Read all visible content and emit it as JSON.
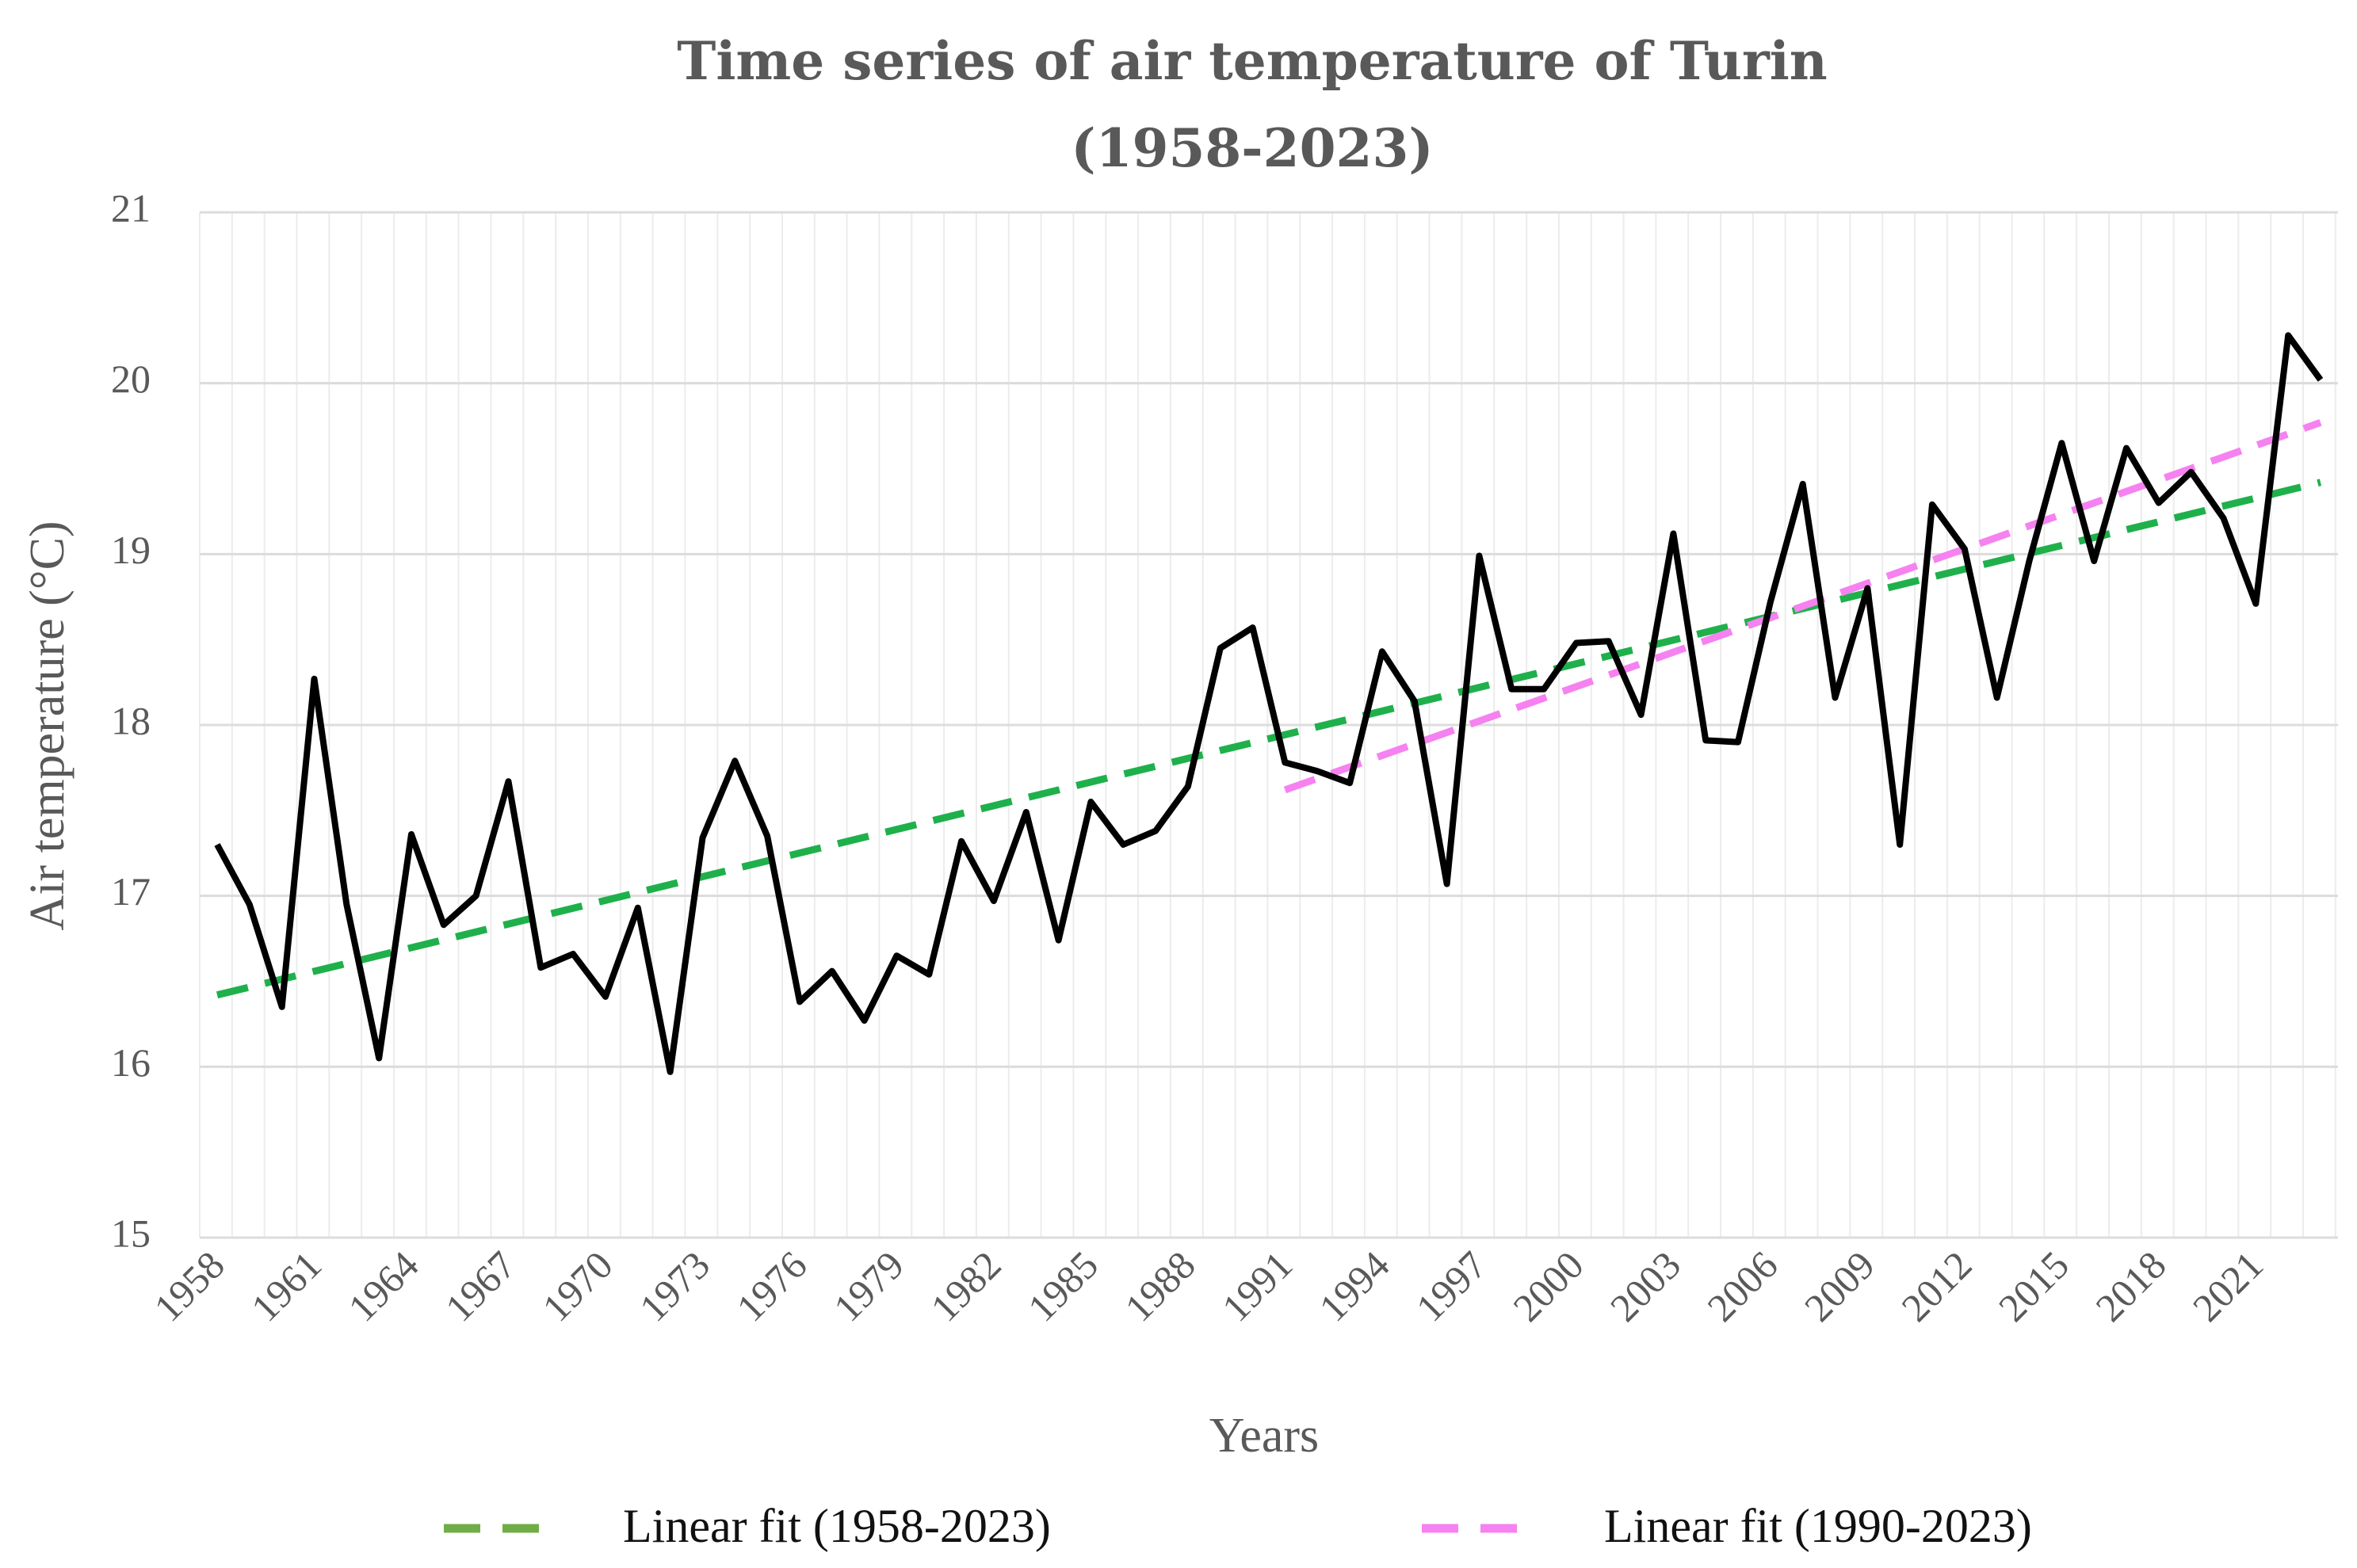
{
  "chart_data": {
    "type": "line",
    "title": "Time series of air temperature of Turin",
    "subtitle": "(1958-2023)",
    "xlabel": "Years",
    "ylabel": "Air temperature (°C)",
    "ylim": [
      15,
      21
    ],
    "yticks": [
      15,
      16,
      17,
      18,
      19,
      20,
      21
    ],
    "xticks": [
      1958,
      1961,
      1964,
      1967,
      1970,
      1973,
      1976,
      1979,
      1982,
      1985,
      1988,
      1991,
      1994,
      1997,
      2000,
      2003,
      2006,
      2009,
      2012,
      2015,
      2018,
      2021
    ],
    "xlim": [
      1958,
      2023
    ],
    "grid": true,
    "legend_position": "bottom",
    "series": [
      {
        "color": "#000000",
        "x": [
          1958,
          1959,
          1960,
          1961,
          1962,
          1963,
          1964,
          1965,
          1966,
          1967,
          1968,
          1969,
          1970,
          1971,
          1972,
          1973,
          1974,
          1975,
          1976,
          1977,
          1978,
          1979,
          1980,
          1981,
          1982,
          1983,
          1984,
          1985,
          1986,
          1987,
          1988,
          1989,
          1990,
          1991,
          1992,
          1993,
          1994,
          1995,
          1996,
          1997,
          1998,
          1999,
          2000,
          2001,
          2002,
          2003,
          2004,
          2005,
          2006,
          2007,
          2008,
          2009,
          2010,
          2011,
          2012,
          2013,
          2014,
          2015,
          2016,
          2017,
          2018,
          2019,
          2020,
          2021,
          2022,
          2023
        ],
        "values": [
          17.3,
          16.95,
          16.35,
          18.27,
          16.95,
          16.05,
          17.36,
          16.83,
          17.0,
          17.67,
          16.58,
          16.66,
          16.41,
          16.93,
          15.97,
          17.34,
          17.79,
          17.35,
          16.38,
          16.56,
          16.27,
          16.65,
          16.54,
          17.32,
          16.97,
          17.49,
          16.74,
          17.55,
          17.3,
          17.38,
          17.64,
          18.45,
          18.57,
          17.78,
          17.73,
          17.66,
          18.43,
          18.14,
          17.07,
          18.99,
          18.21,
          18.21,
          18.48,
          18.49,
          18.06,
          19.12,
          17.91,
          17.9,
          18.72,
          19.41,
          18.16,
          18.8,
          17.3,
          19.29,
          19.03,
          18.16,
          18.96,
          19.65,
          18.96,
          19.62,
          19.3,
          19.48,
          19.21,
          18.71,
          20.28,
          20.02
        ]
      },
      {
        "name": "Linear fit (1958-2023)",
        "color": "#1fb04c",
        "legend_color": "#70ad47",
        "dash": true,
        "x": [
          1958,
          2023
        ],
        "values": [
          16.42,
          19.42
        ]
      },
      {
        "name": "Linear fit (1990-2023)",
        "color": "#f582f0",
        "legend_color": "#f582f0",
        "dash": true,
        "x": [
          1991,
          2023
        ],
        "values": [
          17.62,
          19.77
        ]
      }
    ]
  }
}
